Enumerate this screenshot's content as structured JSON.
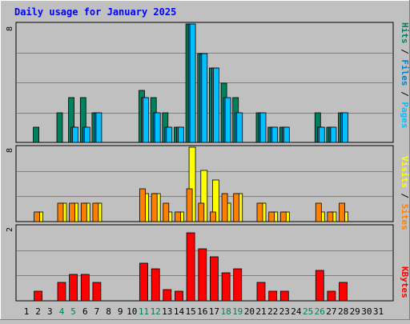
{
  "title": "Daily usage for January 2025",
  "colors": {
    "hits": "#00805c",
    "files": "#0080c0",
    "pages": "#00c0ff",
    "visits": "#ffff00",
    "sites": "#ff8000",
    "kbytes": "#ff0000",
    "background": "#c0c0c0",
    "weekend_day_label": "#00805c",
    "title": "#0000ff"
  },
  "labels": {
    "hits_axis": [
      "Pages",
      "/",
      "Files",
      "/",
      "Hits"
    ],
    "visits_axis": [
      "Sites",
      "/",
      "Visits"
    ],
    "kbytes_axis": [
      "KBytes"
    ]
  },
  "chart_data": [
    {
      "type": "bar",
      "panel": "hits-files-pages",
      "title": "Daily usage for January 2025",
      "ylabel": "Pages / Files / Hits",
      "ylim": [
        0,
        8
      ],
      "y_top_label": "8",
      "grid": true,
      "categories": [
        "1",
        "2",
        "3",
        "4",
        "5",
        "6",
        "7",
        "8",
        "9",
        "10",
        "11",
        "12",
        "13",
        "14",
        "15",
        "16",
        "17",
        "18",
        "19",
        "20",
        "21",
        "22",
        "23",
        "24",
        "25",
        "26",
        "27",
        "28",
        "29",
        "30",
        "31"
      ],
      "series": [
        {
          "name": "Hits",
          "values": [
            0,
            1,
            0,
            2,
            3,
            3,
            2,
            0,
            0,
            0,
            3.5,
            3,
            2,
            1,
            8,
            6,
            5,
            4,
            3,
            0,
            2,
            1,
            1,
            0,
            0,
            2,
            1,
            2,
            0,
            0,
            0
          ]
        },
        {
          "name": "Files",
          "values": [
            0,
            0,
            0,
            0,
            1,
            1,
            2,
            0,
            0,
            0,
            3,
            2,
            1,
            1,
            8,
            6,
            5,
            3,
            2,
            0,
            2,
            1,
            1,
            0,
            0,
            1,
            1,
            2,
            0,
            0,
            0
          ]
        },
        {
          "name": "Pages",
          "values": [
            0,
            0,
            0,
            0,
            1,
            1,
            2,
            0,
            0,
            0,
            3,
            2,
            1,
            1,
            8,
            6,
            5,
            3,
            2,
            0,
            2,
            1,
            1,
            0,
            0,
            1,
            1,
            2,
            0,
            0,
            0
          ]
        }
      ]
    },
    {
      "type": "bar",
      "panel": "visits-sites",
      "ylabel": "Sites / Visits",
      "ylim": [
        0,
        8
      ],
      "y_top_label": "8",
      "grid": true,
      "categories": [
        "1",
        "2",
        "3",
        "4",
        "5",
        "6",
        "7",
        "8",
        "9",
        "10",
        "11",
        "12",
        "13",
        "14",
        "15",
        "16",
        "17",
        "18",
        "19",
        "20",
        "21",
        "22",
        "23",
        "24",
        "25",
        "26",
        "27",
        "28",
        "29",
        "30",
        "31"
      ],
      "series": [
        {
          "name": "Visits",
          "values": [
            0,
            1,
            0,
            2,
            2,
            2,
            2,
            0,
            0,
            0,
            3,
            3,
            1,
            1,
            8,
            5.5,
            4.5,
            2,
            3,
            0,
            2,
            1,
            1,
            0,
            0,
            1,
            1,
            1,
            0,
            0,
            0
          ]
        },
        {
          "name": "Sites",
          "values": [
            0,
            1,
            0,
            2,
            2,
            2,
            2,
            0,
            0,
            0,
            3.5,
            3,
            2,
            1,
            3.5,
            2,
            1,
            3,
            3,
            0,
            2,
            1,
            1,
            0,
            0,
            2,
            1,
            2,
            0,
            0,
            0
          ]
        }
      ]
    },
    {
      "type": "bar",
      "panel": "kbytes",
      "ylabel": "KBytes",
      "ylim": [
        0,
        2
      ],
      "y_top_label": "2",
      "grid": true,
      "categories": [
        "1",
        "2",
        "3",
        "4",
        "5",
        "6",
        "7",
        "8",
        "9",
        "10",
        "11",
        "12",
        "13",
        "14",
        "15",
        "16",
        "17",
        "18",
        "19",
        "20",
        "21",
        "22",
        "23",
        "24",
        "25",
        "26",
        "27",
        "28",
        "29",
        "30",
        "31"
      ],
      "series": [
        {
          "name": "KBytes",
          "values": [
            0,
            0.25,
            0,
            0.5,
            0.72,
            0.72,
            0.5,
            0,
            0,
            0,
            1.0,
            0.85,
            0.3,
            0.25,
            1.82,
            1.4,
            1.18,
            0.75,
            0.85,
            0,
            0.5,
            0.25,
            0.25,
            0,
            0,
            0.82,
            0.25,
            0.5,
            0,
            0,
            0
          ]
        }
      ]
    }
  ],
  "days": [
    {
      "label": "1",
      "weekend": false
    },
    {
      "label": "2",
      "weekend": false
    },
    {
      "label": "3",
      "weekend": false
    },
    {
      "label": "4",
      "weekend": true
    },
    {
      "label": "5",
      "weekend": true
    },
    {
      "label": "6",
      "weekend": false
    },
    {
      "label": "7",
      "weekend": false
    },
    {
      "label": "8",
      "weekend": false
    },
    {
      "label": "9",
      "weekend": false
    },
    {
      "label": "10",
      "weekend": false
    },
    {
      "label": "11",
      "weekend": true
    },
    {
      "label": "12",
      "weekend": true
    },
    {
      "label": "13",
      "weekend": false
    },
    {
      "label": "14",
      "weekend": false
    },
    {
      "label": "15",
      "weekend": false
    },
    {
      "label": "16",
      "weekend": false
    },
    {
      "label": "17",
      "weekend": false
    },
    {
      "label": "18",
      "weekend": true
    },
    {
      "label": "19",
      "weekend": true
    },
    {
      "label": "20",
      "weekend": false
    },
    {
      "label": "21",
      "weekend": false
    },
    {
      "label": "22",
      "weekend": false
    },
    {
      "label": "23",
      "weekend": false
    },
    {
      "label": "24",
      "weekend": false
    },
    {
      "label": "25",
      "weekend": true
    },
    {
      "label": "26",
      "weekend": true
    },
    {
      "label": "27",
      "weekend": false
    },
    {
      "label": "28",
      "weekend": false
    },
    {
      "label": "29",
      "weekend": false
    },
    {
      "label": "30",
      "weekend": false
    },
    {
      "label": "31",
      "weekend": false
    }
  ]
}
